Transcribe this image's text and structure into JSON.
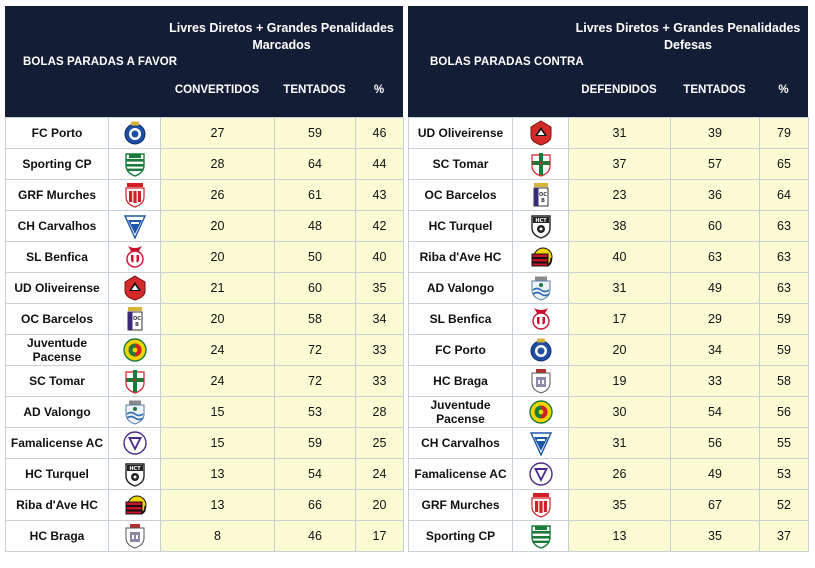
{
  "left": {
    "title": "BOLAS PARADAS A FAVOR",
    "super_line1": "Livres Diretos + Grandes Penalidades",
    "super_line2": "Marcados",
    "col1": "CONVERTIDOS",
    "col2": "TENTADOS",
    "col3": "%",
    "rows": [
      {
        "team": "FC Porto",
        "logo": "fc-porto-crest-icon",
        "a": "27",
        "b": "59",
        "pct": "46"
      },
      {
        "team": "Sporting CP",
        "logo": "sporting-cp-crest-icon",
        "a": "28",
        "b": "64",
        "pct": "44"
      },
      {
        "team": "GRF Murches",
        "logo": "grf-murches-crest-icon",
        "a": "26",
        "b": "61",
        "pct": "43"
      },
      {
        "team": "CH Carvalhos",
        "logo": "ch-carvalhos-crest-icon",
        "a": "20",
        "b": "48",
        "pct": "42"
      },
      {
        "team": "SL Benfica",
        "logo": "sl-benfica-crest-icon",
        "a": "20",
        "b": "50",
        "pct": "40"
      },
      {
        "team": "UD Oliveirense",
        "logo": "ud-oliveirense-crest-icon",
        "a": "21",
        "b": "60",
        "pct": "35"
      },
      {
        "team": "OC Barcelos",
        "logo": "oc-barcelos-crest-icon",
        "a": "20",
        "b": "58",
        "pct": "34"
      },
      {
        "team": "Juventude Pacense",
        "team_l1": "Juventude",
        "team_l2": "Pacense",
        "logo": "juventude-pacense-crest-icon",
        "a": "24",
        "b": "72",
        "pct": "33"
      },
      {
        "team": "SC Tomar",
        "logo": "sc-tomar-crest-icon",
        "a": "24",
        "b": "72",
        "pct": "33"
      },
      {
        "team": "AD Valongo",
        "logo": "ad-valongo-crest-icon",
        "a": "15",
        "b": "53",
        "pct": "28"
      },
      {
        "team": "Famalicense AC",
        "logo": "famalicense-ac-crest-icon",
        "a": "15",
        "b": "59",
        "pct": "25"
      },
      {
        "team": "HC Turquel",
        "logo": "hc-turquel-crest-icon",
        "a": "13",
        "b": "54",
        "pct": "24"
      },
      {
        "team": "Riba d'Ave HC",
        "logo": "riba-dave-hc-crest-icon",
        "a": "13",
        "b": "66",
        "pct": "20"
      },
      {
        "team": "HC Braga",
        "logo": "hc-braga-crest-icon",
        "a": "8",
        "b": "46",
        "pct": "17"
      }
    ]
  },
  "right": {
    "title": "BOLAS PARADAS CONTRA",
    "super_line1": "Livres Diretos + Grandes Penalidades",
    "super_line2": "Defesas",
    "col1": "DEFENDIDOS",
    "col2": "TENTADOS",
    "col3": "%",
    "rows": [
      {
        "team": "UD Oliveirense",
        "logo": "ud-oliveirense-crest-icon",
        "a": "31",
        "b": "39",
        "pct": "79"
      },
      {
        "team": "SC Tomar",
        "logo": "sc-tomar-crest-icon",
        "a": "37",
        "b": "57",
        "pct": "65"
      },
      {
        "team": "OC Barcelos",
        "logo": "oc-barcelos-crest-icon",
        "a": "23",
        "b": "36",
        "pct": "64"
      },
      {
        "team": "HC Turquel",
        "logo": "hc-turquel-crest-icon",
        "a": "38",
        "b": "60",
        "pct": "63"
      },
      {
        "team": "Riba d'Ave HC",
        "logo": "riba-dave-hc-crest-icon",
        "a": "40",
        "b": "63",
        "pct": "63"
      },
      {
        "team": "AD Valongo",
        "logo": "ad-valongo-crest-icon",
        "a": "31",
        "b": "49",
        "pct": "63"
      },
      {
        "team": "SL Benfica",
        "logo": "sl-benfica-crest-icon",
        "a": "17",
        "b": "29",
        "pct": "59"
      },
      {
        "team": "FC Porto",
        "logo": "fc-porto-crest-icon",
        "a": "20",
        "b": "34",
        "pct": "59"
      },
      {
        "team": "HC Braga",
        "logo": "hc-braga-crest-icon",
        "a": "19",
        "b": "33",
        "pct": "58"
      },
      {
        "team": "Juventude Pacense",
        "team_l1": "Juventude",
        "team_l2": "Pacense",
        "logo": "juventude-pacense-crest-icon",
        "a": "30",
        "b": "54",
        "pct": "56"
      },
      {
        "team": "CH Carvalhos",
        "logo": "ch-carvalhos-crest-icon",
        "a": "31",
        "b": "56",
        "pct": "55"
      },
      {
        "team": "Famalicense AC",
        "logo": "famalicense-ac-crest-icon",
        "a": "26",
        "b": "49",
        "pct": "53"
      },
      {
        "team": "GRF Murches",
        "logo": "grf-murches-crest-icon",
        "a": "35",
        "b": "67",
        "pct": "52"
      },
      {
        "team": "Sporting CP",
        "logo": "sporting-cp-crest-icon",
        "a": "13",
        "b": "35",
        "pct": "37"
      }
    ]
  },
  "colors": {
    "header_bg": "#131e36",
    "value_cell_bg": "#fbfbd4",
    "grid_line": "#c8cfd6"
  }
}
